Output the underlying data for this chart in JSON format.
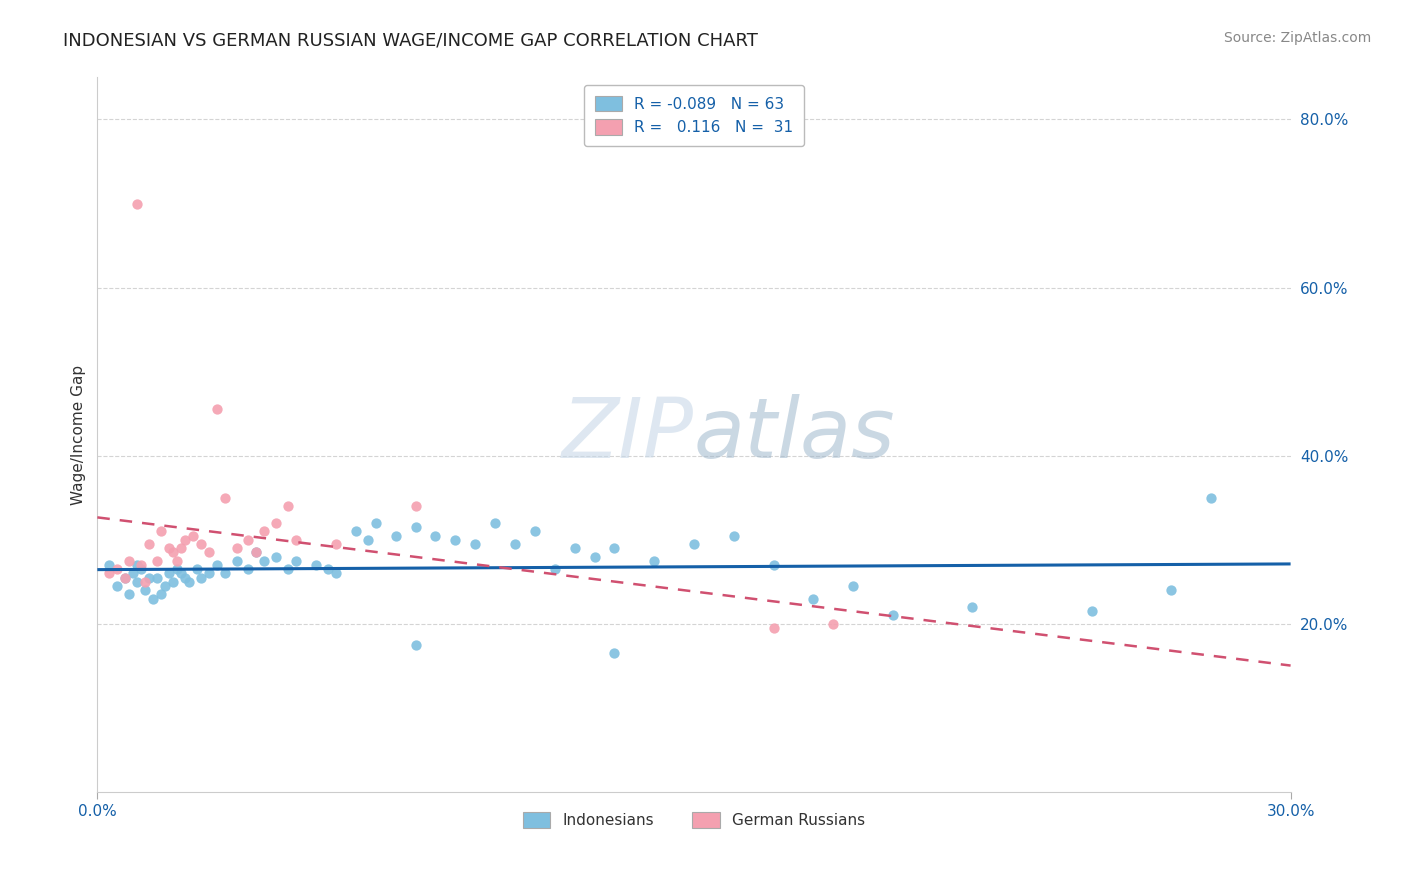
{
  "title": "INDONESIAN VS GERMAN RUSSIAN WAGE/INCOME GAP CORRELATION CHART",
  "source": "Source: ZipAtlas.com",
  "ylabel": "Wage/Income Gap",
  "xlim": [
    0.0,
    0.3
  ],
  "ylim": [
    0.0,
    0.85
  ],
  "y_ticks": [
    0.2,
    0.4,
    0.6,
    0.8
  ],
  "y_tick_labels": [
    "20.0%",
    "40.0%",
    "60.0%",
    "80.0%"
  ],
  "legend1_label": "Indonesians",
  "legend2_label": "German Russians",
  "R1": "-0.089",
  "N1": "63",
  "R2": "0.116",
  "N2": "31",
  "color1": "#7fbfdf",
  "color2": "#f4a0b0",
  "line1_color": "#1560a8",
  "line2_color": "#d05070",
  "watermark_color": "#c8d8e8",
  "background_color": "#ffffff",
  "grid_color": "#d0d0d0",
  "indonesian_x": [
    0.003,
    0.005,
    0.007,
    0.008,
    0.009,
    0.01,
    0.01,
    0.011,
    0.012,
    0.013,
    0.014,
    0.015,
    0.016,
    0.017,
    0.018,
    0.019,
    0.02,
    0.021,
    0.022,
    0.023,
    0.025,
    0.026,
    0.028,
    0.03,
    0.032,
    0.035,
    0.038,
    0.04,
    0.042,
    0.045,
    0.048,
    0.05,
    0.055,
    0.058,
    0.06,
    0.065,
    0.068,
    0.07,
    0.075,
    0.08,
    0.085,
    0.09,
    0.095,
    0.1,
    0.105,
    0.11,
    0.115,
    0.12,
    0.125,
    0.13,
    0.14,
    0.15,
    0.16,
    0.17,
    0.18,
    0.19,
    0.2,
    0.22,
    0.25,
    0.27,
    0.08,
    0.13,
    0.28
  ],
  "indonesian_y": [
    0.27,
    0.245,
    0.255,
    0.235,
    0.26,
    0.27,
    0.25,
    0.265,
    0.24,
    0.255,
    0.23,
    0.255,
    0.235,
    0.245,
    0.26,
    0.25,
    0.265,
    0.26,
    0.255,
    0.25,
    0.265,
    0.255,
    0.26,
    0.27,
    0.26,
    0.275,
    0.265,
    0.285,
    0.275,
    0.28,
    0.265,
    0.275,
    0.27,
    0.265,
    0.26,
    0.31,
    0.3,
    0.32,
    0.305,
    0.315,
    0.305,
    0.3,
    0.295,
    0.32,
    0.295,
    0.31,
    0.265,
    0.29,
    0.28,
    0.29,
    0.275,
    0.295,
    0.305,
    0.27,
    0.23,
    0.245,
    0.21,
    0.22,
    0.215,
    0.24,
    0.175,
    0.165,
    0.35
  ],
  "german_russian_x": [
    0.003,
    0.005,
    0.007,
    0.008,
    0.01,
    0.011,
    0.012,
    0.013,
    0.015,
    0.016,
    0.018,
    0.019,
    0.02,
    0.021,
    0.022,
    0.024,
    0.026,
    0.028,
    0.03,
    0.032,
    0.035,
    0.038,
    0.04,
    0.042,
    0.045,
    0.048,
    0.05,
    0.06,
    0.08,
    0.17,
    0.185
  ],
  "german_russian_y": [
    0.26,
    0.265,
    0.255,
    0.275,
    0.7,
    0.27,
    0.25,
    0.295,
    0.275,
    0.31,
    0.29,
    0.285,
    0.275,
    0.29,
    0.3,
    0.305,
    0.295,
    0.285,
    0.455,
    0.35,
    0.29,
    0.3,
    0.285,
    0.31,
    0.32,
    0.34,
    0.3,
    0.295,
    0.34,
    0.195,
    0.2
  ]
}
